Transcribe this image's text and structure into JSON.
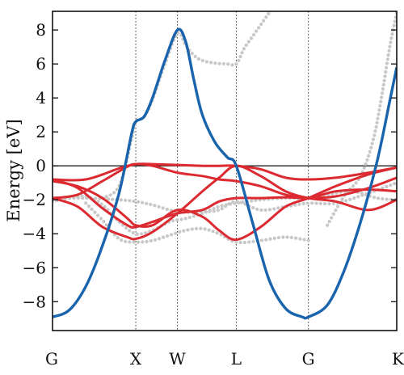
{
  "chart_data": {
    "type": "line",
    "title": "",
    "xlabel": "",
    "ylabel": "Energy [eV]",
    "ylim": [
      -9.7,
      9.1
    ],
    "yticks": [
      8,
      6,
      4,
      2,
      0,
      -2,
      -4,
      -6,
      -8
    ],
    "xticks": [
      {
        "label": "G",
        "x": 0.0
      },
      {
        "label": "X",
        "x": 1.0
      },
      {
        "label": "W",
        "x": 1.5
      },
      {
        "label": "L",
        "x": 2.207
      },
      {
        "label": "G",
        "x": 3.073
      },
      {
        "label": "K",
        "x": 4.134
      }
    ],
    "xlim": [
      0.0,
      4.134
    ],
    "fermi_level": 0,
    "colors": {
      "blue_band": "#1a64ad",
      "red_bands": "#dc2a31",
      "reference_dotted": "#c8c8c8",
      "vlines": "#333333"
    },
    "series": [
      {
        "style": "blue-solid",
        "x": [
          0,
          0.2,
          0.4,
          0.6,
          0.8,
          0.95,
          1.0,
          1.1,
          1.2,
          1.35,
          1.5,
          1.6,
          1.7,
          1.8,
          1.95,
          2.1,
          2.207,
          2.4,
          2.6,
          2.8,
          3.0,
          3.073,
          3.3,
          3.5,
          3.7,
          3.9,
          4.05,
          4.134
        ],
        "y": [
          -8.9,
          -8.5,
          -7.1,
          -4.7,
          -1.6,
          1.9,
          2.6,
          2.9,
          4.0,
          6.2,
          8.0,
          7.3,
          5.0,
          3.0,
          1.4,
          0.5,
          0.0,
          -3.3,
          -6.7,
          -8.4,
          -8.9,
          -8.9,
          -8.2,
          -6.2,
          -3.3,
          0.3,
          3.8,
          5.8
        ]
      },
      {
        "style": "red-solid",
        "x": [
          0,
          0.4,
          0.8,
          1.0,
          1.2,
          1.5,
          1.8,
          2.0,
          2.207,
          2.5,
          2.8,
          3.073,
          3.4,
          3.8,
          4.134
        ],
        "y": [
          -0.8,
          -0.8,
          -0.15,
          0.1,
          0.1,
          0.05,
          0.0,
          0.0,
          0.0,
          -0.2,
          -0.7,
          -0.8,
          -0.7,
          -0.4,
          -0.1
        ]
      },
      {
        "style": "red-solid",
        "x": [
          0,
          0.3,
          0.6,
          0.9,
          1.0,
          1.2,
          1.5,
          1.8,
          2.0,
          2.207,
          2.5,
          2.8,
          3.073,
          3.4,
          3.8,
          4.134
        ],
        "y": [
          -0.8,
          -1.3,
          -2.5,
          -3.5,
          -3.6,
          -3.3,
          -2.8,
          -2.6,
          -2.1,
          -1.9,
          -1.9,
          -1.85,
          -1.9,
          -1.8,
          -1.3,
          -0.7
        ]
      },
      {
        "style": "red-solid",
        "x": [
          0,
          0.3,
          0.6,
          0.9,
          1.0,
          1.2,
          1.5,
          1.8,
          2.0,
          2.207,
          2.5,
          2.8,
          3.073,
          3.4,
          3.8,
          4.134
        ],
        "y": [
          -1.9,
          -1.7,
          -0.9,
          -0.05,
          0.1,
          0.0,
          -0.4,
          -0.6,
          -0.8,
          -0.9,
          -1.2,
          -1.7,
          -1.9,
          -1.5,
          -1.4,
          -1.5
        ]
      },
      {
        "style": "red-solid",
        "x": [
          0,
          0.3,
          0.6,
          0.9,
          1.0,
          1.2,
          1.5,
          1.8,
          2.0,
          2.207,
          2.5,
          2.8,
          3.073,
          3.4,
          3.8,
          4.134
        ],
        "y": [
          -1.9,
          -2.4,
          -3.6,
          -4.2,
          -4.3,
          -3.9,
          -2.8,
          -1.5,
          -0.7,
          0.0,
          -0.6,
          -1.5,
          -1.9,
          -2.1,
          -2.6,
          -2.0
        ]
      },
      {
        "style": "red-solid",
        "x": [
          0,
          0.3,
          0.6,
          0.9,
          1.0,
          1.2,
          1.5,
          1.8,
          2.0,
          2.207,
          2.5,
          2.8,
          3.073,
          3.4,
          3.8,
          4.134
        ],
        "y": [
          -0.9,
          -1.2,
          -1.9,
          -3.1,
          -3.5,
          -3.5,
          -2.6,
          -3.0,
          -3.8,
          -4.35,
          -3.6,
          -2.4,
          -1.9,
          -1.2,
          -0.5,
          -0.1
        ]
      },
      {
        "style": "gray-dotted",
        "x": [
          0,
          0.4,
          0.8,
          1.0,
          1.2,
          1.5,
          1.8,
          2.0,
          2.207,
          2.5,
          2.8,
          3.073,
          3.4,
          3.8,
          4.134
        ],
        "y": [
          -1.9,
          -1.9,
          -2.0,
          -2.1,
          -2.3,
          -2.7,
          -2.7,
          -2.6,
          -2.1,
          -2.6,
          -2.4,
          -2.2,
          -2.2,
          -1.6,
          -1.0
        ]
      },
      {
        "style": "gray-dotted",
        "x": [
          0,
          0.2,
          0.4,
          0.6,
          0.8,
          1.0,
          1.2,
          1.4,
          1.6,
          1.8,
          2.0,
          2.207,
          2.5,
          2.8,
          3.073,
          3.3,
          3.6,
          3.9,
          4.134
        ],
        "y": [
          -2.1,
          -1.9,
          -1.8,
          -2.3,
          -3.3,
          -4.0,
          -3.8,
          -3.3,
          -3.1,
          -2.8,
          -2.4,
          -2.2,
          -2.0,
          -1.9,
          -1.9,
          -1.7,
          -1.5,
          -1.9,
          -2.0
        ]
      },
      {
        "style": "gray-dotted",
        "x": [
          0.4,
          0.6,
          0.8,
          1.0,
          1.2,
          1.4,
          1.6,
          1.8,
          2.0,
          2.207,
          2.5,
          2.8,
          3.073
        ],
        "y": [
          -2.2,
          -3.2,
          -4.3,
          -4.5,
          -4.4,
          -4.1,
          -3.8,
          -3.7,
          -4.0,
          -4.5,
          -4.4,
          -4.2,
          -4.4
        ]
      },
      {
        "style": "gray-dotted",
        "x": [
          0.6,
          0.8,
          0.95,
          1.0,
          1.1,
          1.2,
          1.35,
          1.5,
          1.6,
          1.7,
          1.8,
          1.95,
          2.1,
          2.207,
          2.3,
          2.4,
          2.5,
          2.6,
          2.7
        ],
        "y": [
          -1.9,
          -1.2,
          1.6,
          2.6,
          2.9,
          3.9,
          6.0,
          7.8,
          7.1,
          6.5,
          6.2,
          6.05,
          6.0,
          6.0,
          6.9,
          7.6,
          8.3,
          9.0,
          9.6
        ]
      },
      {
        "style": "gray-dotted",
        "x": [
          1.38,
          1.45,
          1.5
        ],
        "y": [
          9.2,
          9.5,
          9.3
        ]
      },
      {
        "style": "gray-dotted",
        "x": [
          3.3,
          3.5,
          3.7,
          3.85,
          3.95,
          4.05,
          4.134
        ],
        "y": [
          -3.5,
          -1.8,
          -0.6,
          1.5,
          4.0,
          7.0,
          9.0
        ]
      }
    ]
  }
}
